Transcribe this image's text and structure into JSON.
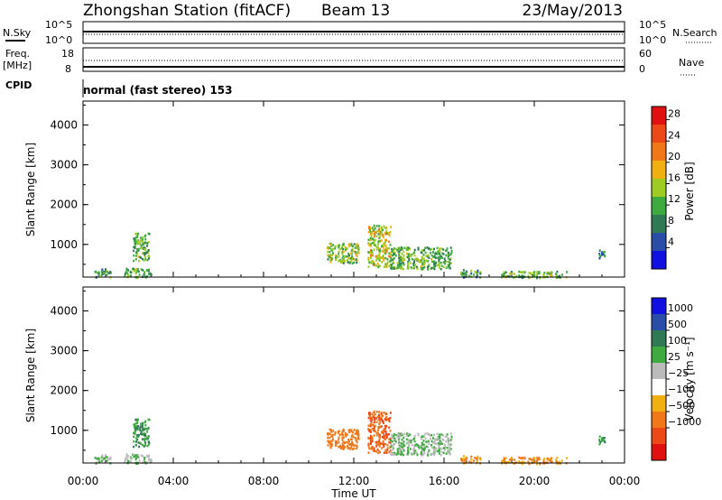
{
  "header": {
    "station": "Zhongshan Station (fitACF)",
    "beam": "Beam 13",
    "date": "23/May/2013"
  },
  "top_panels": {
    "nsky_label": "N.Sky",
    "nsky_ticks": [
      "10^5",
      "10^0"
    ],
    "nsearch_label": "N.Search",
    "nsearch_ticks": [
      "10^5",
      "10^0"
    ],
    "freq_label": "Freq.",
    "freq_unit": "[MHz]",
    "freq_ticks": [
      "18",
      "8"
    ],
    "nave_label": "Nave",
    "nave_ticks": [
      "60",
      "0"
    ],
    "cpid_label": "CPID",
    "cpid_value": "normal (fast stereo) 153"
  },
  "colors": {
    "power": [
      "#1010e0",
      "#2a4ea8",
      "#2f7a55",
      "#3faa3f",
      "#9fcc22",
      "#f0b010",
      "#f07818",
      "#ec4818",
      "#e01010"
    ],
    "velocity": [
      "#e01010",
      "#ec4818",
      "#f07818",
      "#f0b010",
      "#ffffff",
      "#bbbbbb",
      "#3faa3f",
      "#2f7a55",
      "#2a4ea8",
      "#1010e0"
    ]
  },
  "chart_data": [
    {
      "type": "heatmap",
      "name": "power",
      "xlabel": "Time UT",
      "ylabel": "Slant Range [km]",
      "xticks": [
        "00:00",
        "04:00",
        "08:00",
        "12:00",
        "16:00",
        "20:00",
        "00:00"
      ],
      "xlim": [
        0,
        24
      ],
      "yticks": [
        "1000",
        "2000",
        "3000",
        "4000"
      ],
      "ylim": [
        180,
        4600
      ],
      "colorbar": {
        "label": "Power [dB]",
        "ticks": [
          "4",
          "8",
          "12",
          "16",
          "20",
          "24",
          "28"
        ],
        "range": [
          0,
          30
        ]
      },
      "patches": [
        {
          "t": [
            0.5,
            1.2
          ],
          "r": [
            180,
            420
          ],
          "val": 10
        },
        {
          "t": [
            1.8,
            3.0
          ],
          "r": [
            180,
            420
          ],
          "val": 12
        },
        {
          "t": [
            2.2,
            2.9
          ],
          "r": [
            600,
            1300
          ],
          "val": 12
        },
        {
          "t": [
            10.8,
            12.2
          ],
          "r": [
            550,
            1050
          ],
          "val": 14
        },
        {
          "t": [
            12.6,
            13.6
          ],
          "r": [
            450,
            1500
          ],
          "val": 16
        },
        {
          "t": [
            13.6,
            16.3
          ],
          "r": [
            400,
            950
          ],
          "val": 12
        },
        {
          "t": [
            16.7,
            17.6
          ],
          "r": [
            180,
            380
          ],
          "val": 10
        },
        {
          "t": [
            18.5,
            21.5
          ],
          "r": [
            180,
            350
          ],
          "val": 12
        },
        {
          "t": [
            22.8,
            23.1
          ],
          "r": [
            650,
            900
          ],
          "val": 8
        }
      ]
    },
    {
      "type": "heatmap",
      "name": "velocity",
      "xlabel": "Time UT",
      "ylabel": "Slant Range [km]",
      "xticks": [
        "00:00",
        "04:00",
        "08:00",
        "12:00",
        "16:00",
        "20:00",
        "00:00"
      ],
      "xlim": [
        0,
        24
      ],
      "yticks": [
        "1000",
        "2000",
        "3000",
        "4000"
      ],
      "ylim": [
        180,
        4600
      ],
      "colorbar": {
        "label": "Velocity [m s⁻¹]",
        "ticks": [
          "1000",
          "500",
          "100",
          "25",
          "-25",
          "-100",
          "-500",
          "-1000"
        ]
      },
      "patches": [
        {
          "t": [
            0.5,
            1.2
          ],
          "r": [
            180,
            420
          ],
          "val": 100
        },
        {
          "t": [
            1.8,
            3.0
          ],
          "r": [
            180,
            420
          ],
          "val": 100
        },
        {
          "t": [
            2.2,
            2.9
          ],
          "r": [
            600,
            1300
          ],
          "val": 500
        },
        {
          "t": [
            10.8,
            12.2
          ],
          "r": [
            550,
            1050
          ],
          "val": -300
        },
        {
          "t": [
            12.6,
            13.6
          ],
          "r": [
            450,
            1500
          ],
          "val": -500
        },
        {
          "t": [
            13.6,
            16.3
          ],
          "r": [
            400,
            950
          ],
          "val": 100
        },
        {
          "t": [
            16.7,
            17.6
          ],
          "r": [
            180,
            380
          ],
          "val": -100
        },
        {
          "t": [
            18.5,
            21.5
          ],
          "r": [
            180,
            350
          ],
          "val": -100
        },
        {
          "t": [
            22.8,
            23.1
          ],
          "r": [
            650,
            900
          ],
          "val": 500
        }
      ]
    }
  ]
}
